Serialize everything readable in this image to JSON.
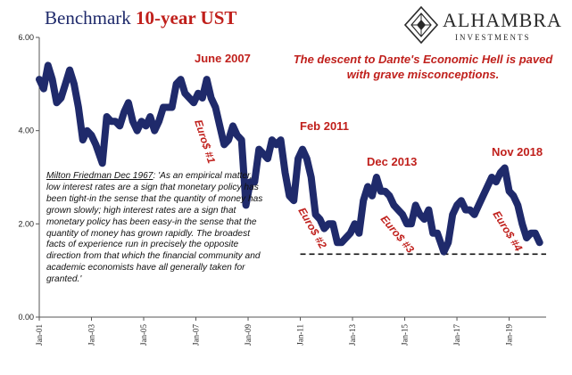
{
  "header": {
    "title_plain": "Benchmark ",
    "title_bold": "10-year UST",
    "logo_name": "ALHAMBRA",
    "logo_sub": "INVESTMENTS"
  },
  "callout": "The descent to Dante's Economic Hell is paved with grave misconceptions.",
  "quote": {
    "attribution": "Milton Friedman Dec 1967",
    "text": ": 'As an empirical matter, low interest rates are a sign that monetary policy has been tight-in the sense that the quantity of money has grown slowly; high interest rates are a sign that monetary policy has been easy-in the sense that the quantity of money has grown rapidly. The broadest facts of experience run in precisely the opposite direction from that which the financial community and academic economists have all generally taken for granted.'"
  },
  "colors": {
    "series": "#1f2a6b",
    "annotation": "#c0201c",
    "title": "#1f2a6b"
  },
  "chart_data": {
    "type": "line",
    "title": "Benchmark 10-year UST",
    "xlabel": "",
    "ylabel": "",
    "ylim": [
      0,
      6
    ],
    "xlim": [
      "2001-01",
      "2020-06"
    ],
    "grid": false,
    "y_ticks": [
      "0.00",
      "2.00",
      "4.00",
      "6.00"
    ],
    "x_ticks": [
      "Jan-01",
      "Jan-03",
      "Jan-05",
      "Jan-07",
      "Jan-09",
      "Jan-11",
      "Jan-13",
      "Jan-15",
      "Jan-17",
      "Jan-19"
    ],
    "series": [
      {
        "x": [
          "2001-01",
          "2001-03",
          "2001-05",
          "2001-07",
          "2001-09",
          "2001-11",
          "2002-01",
          "2002-03",
          "2002-05",
          "2002-07",
          "2002-09",
          "2002-11",
          "2003-01",
          "2003-03",
          "2003-06",
          "2003-08",
          "2003-10",
          "2003-12",
          "2004-02",
          "2004-04",
          "2004-06",
          "2004-08",
          "2004-10",
          "2004-12",
          "2005-02",
          "2005-04",
          "2005-06",
          "2005-08",
          "2005-10",
          "2005-12",
          "2006-02",
          "2006-04",
          "2006-06",
          "2006-08",
          "2006-10",
          "2006-12",
          "2007-02",
          "2007-04",
          "2007-06",
          "2007-08",
          "2007-10",
          "2007-12",
          "2008-02",
          "2008-04",
          "2008-06",
          "2008-08",
          "2008-10",
          "2008-12",
          "2009-02",
          "2009-04",
          "2009-06",
          "2009-08",
          "2009-10",
          "2009-12",
          "2010-02",
          "2010-04",
          "2010-06",
          "2010-08",
          "2010-10",
          "2010-12",
          "2011-02",
          "2011-04",
          "2011-06",
          "2011-08",
          "2011-10",
          "2011-12",
          "2012-02",
          "2012-04",
          "2012-06",
          "2012-08",
          "2012-10",
          "2012-12",
          "2013-02",
          "2013-04",
          "2013-06",
          "2013-08",
          "2013-10",
          "2013-12",
          "2014-02",
          "2014-04",
          "2014-06",
          "2014-08",
          "2014-10",
          "2014-12",
          "2015-02",
          "2015-04",
          "2015-06",
          "2015-08",
          "2015-10",
          "2015-12",
          "2016-02",
          "2016-04",
          "2016-07",
          "2016-09",
          "2016-11",
          "2017-01",
          "2017-03",
          "2017-05",
          "2017-07",
          "2017-09",
          "2017-11",
          "2018-01",
          "2018-03",
          "2018-05",
          "2018-07",
          "2018-09",
          "2018-11",
          "2019-01",
          "2019-03",
          "2019-05",
          "2019-07",
          "2019-09",
          "2019-11",
          "2020-01",
          "2020-03"
        ],
        "values": [
          5.1,
          4.9,
          5.4,
          5.1,
          4.6,
          4.7,
          5.0,
          5.3,
          5.0,
          4.5,
          3.8,
          4.0,
          3.9,
          3.7,
          3.3,
          4.3,
          4.2,
          4.2,
          4.1,
          4.4,
          4.6,
          4.2,
          4.0,
          4.2,
          4.1,
          4.3,
          4.0,
          4.2,
          4.5,
          4.5,
          4.5,
          5.0,
          5.1,
          4.8,
          4.7,
          4.6,
          4.8,
          4.7,
          5.1,
          4.7,
          4.5,
          4.1,
          3.7,
          3.8,
          4.1,
          3.9,
          3.8,
          2.4,
          2.9,
          2.9,
          3.6,
          3.5,
          3.4,
          3.8,
          3.7,
          3.8,
          3.1,
          2.6,
          2.5,
          3.4,
          3.6,
          3.4,
          3.0,
          2.2,
          2.1,
          1.9,
          2.0,
          2.0,
          1.6,
          1.6,
          1.7,
          1.8,
          2.0,
          1.8,
          2.5,
          2.8,
          2.6,
          3.0,
          2.7,
          2.7,
          2.6,
          2.4,
          2.3,
          2.2,
          2.0,
          2.0,
          2.4,
          2.2,
          2.1,
          2.3,
          1.8,
          1.8,
          1.4,
          1.6,
          2.2,
          2.4,
          2.5,
          2.3,
          2.3,
          2.2,
          2.4,
          2.6,
          2.8,
          3.0,
          2.9,
          3.1,
          3.2,
          2.7,
          2.6,
          2.4,
          2.0,
          1.7,
          1.8,
          1.8,
          1.6
        ]
      }
    ],
    "annotations": {
      "peaks": [
        "June 2007",
        "Feb 2011",
        "Dec 2013",
        "Nov 2018"
      ],
      "eurodollar": [
        "Euro$ #1",
        "Euro$ #2",
        "Euro$ #3",
        "Euro$ #4"
      ],
      "floor_level": 1.35,
      "floor_start": "2011-01"
    }
  }
}
